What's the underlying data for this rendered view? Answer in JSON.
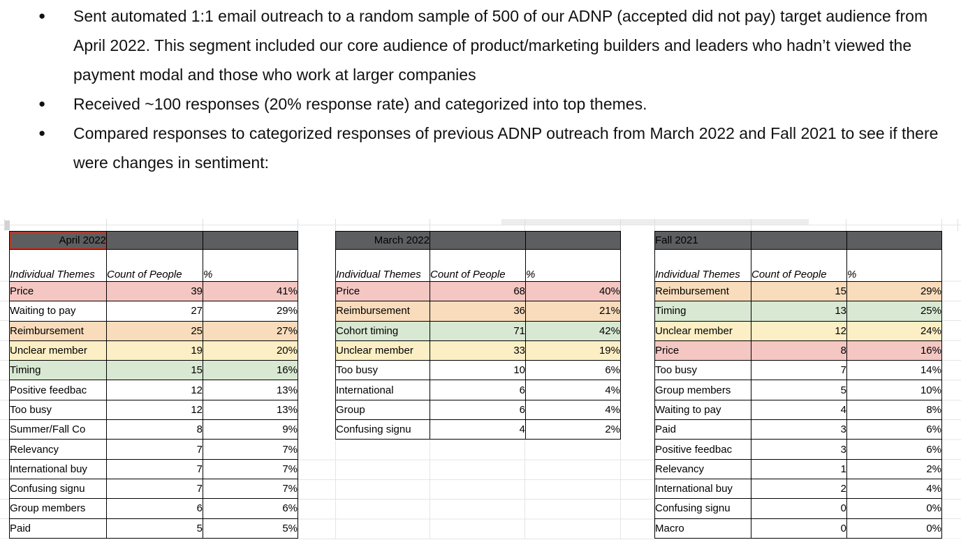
{
  "bullets": [
    "Sent automated 1:1 email outreach to a random sample of 500 of our ADNP (accepted did not pay) target audience from April 2022. This segment included our core audience of product/marketing builders and leaders who hadn’t viewed the payment modal and those who work at larger companies",
    "Received ~100 responses (20% response rate) and categorized into top themes.",
    "Compared responses to categorized responses of previous ADNP outreach from March 2022 and Fall 2021 to see if there were changes in sentiment:"
  ],
  "colors": {
    "header_bg": "#5d5e60",
    "header_text": "#ffffff",
    "selection_border": "#b23b2e",
    "gridline": "#e3e5e3",
    "cell_border": "#000000",
    "highlights": {
      "pink": "#f4c7c3",
      "orange": "#f8dcbc",
      "yellow": "#fcefc5",
      "green": "#d8e8d2",
      "white": "#ffffff"
    }
  },
  "tables": [
    {
      "title": "April 2022",
      "title_align": "right",
      "selected": true,
      "columns": [
        "Individual\nThemes",
        "Count of\nPeople",
        "%"
      ],
      "rows": [
        {
          "theme": "Price",
          "count": "39",
          "pct": "41%",
          "highlight": "pink"
        },
        {
          "theme": "Waiting to pay",
          "count": "27",
          "pct": "29%",
          "highlight": "white"
        },
        {
          "theme": "Reimbursement",
          "count": "25",
          "pct": "27%",
          "highlight": "orange"
        },
        {
          "theme": "Unclear member",
          "count": "19",
          "pct": "20%",
          "highlight": "yellow"
        },
        {
          "theme": "Timing",
          "count": "15",
          "pct": "16%",
          "highlight": "green"
        },
        {
          "theme": "Positive feedbac",
          "count": "12",
          "pct": "13%",
          "highlight": "white"
        },
        {
          "theme": "Too busy",
          "count": "12",
          "pct": "13%",
          "highlight": "white"
        },
        {
          "theme": "Summer/Fall Co",
          "count": "8",
          "pct": "9%",
          "highlight": "white"
        },
        {
          "theme": "Relevancy",
          "count": "7",
          "pct": "7%",
          "highlight": "white"
        },
        {
          "theme": "International buy",
          "count": "7",
          "pct": "7%",
          "highlight": "white"
        },
        {
          "theme": "Confusing signu",
          "count": "7",
          "pct": "7%",
          "highlight": "white"
        },
        {
          "theme": "Group members",
          "count": "6",
          "pct": "6%",
          "highlight": "white"
        },
        {
          "theme": "Paid",
          "count": "5",
          "pct": "5%",
          "highlight": "white"
        }
      ]
    },
    {
      "title": "March 2022",
      "title_align": "right",
      "selected": false,
      "columns": [
        "Individual\nThemes",
        "Count of\nPeople",
        "%"
      ],
      "rows": [
        {
          "theme": "Price",
          "count": "68",
          "pct": "40%",
          "highlight": "pink"
        },
        {
          "theme": "Reimbursement",
          "count": "36",
          "pct": "21%",
          "highlight": "orange"
        },
        {
          "theme": "Cohort timing",
          "count": "71",
          "pct": "42%",
          "highlight": "green"
        },
        {
          "theme": "Unclear member",
          "count": "33",
          "pct": "19%",
          "highlight": "yellow"
        },
        {
          "theme": "Too busy",
          "count": "10",
          "pct": "6%",
          "highlight": "white"
        },
        {
          "theme": "International",
          "count": "6",
          "pct": "4%",
          "highlight": "white"
        },
        {
          "theme": "Group",
          "count": "6",
          "pct": "4%",
          "highlight": "white"
        },
        {
          "theme": "Confusing signu",
          "count": "4",
          "pct": "2%",
          "highlight": "white"
        }
      ]
    },
    {
      "title": "Fall 2021",
      "title_align": "left",
      "selected": false,
      "columns": [
        "Individual\nThemes",
        "Count of\nPeople",
        "%"
      ],
      "rows": [
        {
          "theme": "Reimbursement",
          "count": "15",
          "pct": "29%",
          "highlight": "orange"
        },
        {
          "theme": "Timing",
          "count": "13",
          "pct": "25%",
          "highlight": "green"
        },
        {
          "theme": "Unclear member",
          "count": "12",
          "pct": "24%",
          "highlight": "yellow"
        },
        {
          "theme": "Price",
          "count": "8",
          "pct": "16%",
          "highlight": "pink"
        },
        {
          "theme": "Too busy",
          "count": "7",
          "pct": "14%",
          "highlight": "white"
        },
        {
          "theme": "Group members",
          "count": "5",
          "pct": "10%",
          "highlight": "white"
        },
        {
          "theme": "Waiting to pay",
          "count": "4",
          "pct": "8%",
          "highlight": "white"
        },
        {
          "theme": "Paid",
          "count": "3",
          "pct": "6%",
          "highlight": "white"
        },
        {
          "theme": "Positive feedbac",
          "count": "3",
          "pct": "6%",
          "highlight": "white"
        },
        {
          "theme": "Relevancy",
          "count": "1",
          "pct": "2%",
          "highlight": "white"
        },
        {
          "theme": "International buy",
          "count": "2",
          "pct": "4%",
          "highlight": "white"
        },
        {
          "theme": "Confusing signu",
          "count": "0",
          "pct": "0%",
          "highlight": "white"
        },
        {
          "theme": "Macro",
          "count": "0",
          "pct": "0%",
          "highlight": "white"
        }
      ]
    }
  ]
}
